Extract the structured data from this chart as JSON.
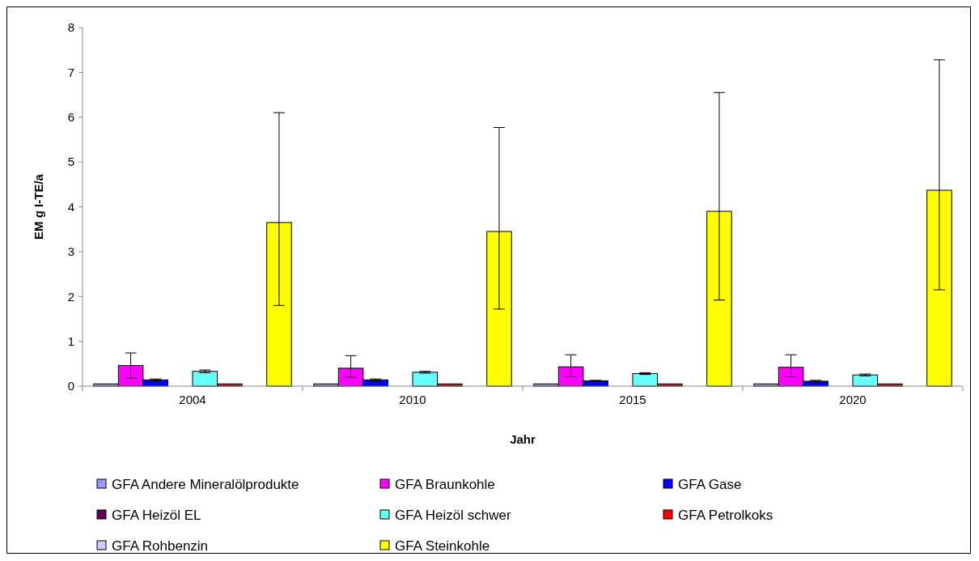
{
  "chart_data": {
    "type": "bar",
    "xlabel": "Jahr",
    "ylabel": "EM g I-TE/a",
    "categories": [
      "2004",
      "2010",
      "2015",
      "2020"
    ],
    "ylim": [
      0,
      8
    ],
    "yticks": [
      0,
      1,
      2,
      3,
      4,
      5,
      6,
      7,
      8
    ],
    "grid": false,
    "legend": "bottom",
    "series": [
      {
        "name": "GFA Andere Mineralölprodukte",
        "color": "#9999ff",
        "values": [
          0.05,
          0.05,
          0.05,
          0.05
        ]
      },
      {
        "name": "GFA Braunkohle",
        "color": "#ff00ff",
        "values": [
          0.46,
          0.4,
          0.43,
          0.42
        ],
        "errors": [
          [
            0.18,
            0.74
          ],
          [
            0.2,
            0.68
          ],
          [
            0.21,
            0.7
          ],
          [
            0.21,
            0.7
          ]
        ]
      },
      {
        "name": "GFA Gase",
        "color": "#0000ff",
        "values": [
          0.14,
          0.14,
          0.12,
          0.11
        ],
        "errors": [
          [
            0.12,
            0.16
          ],
          [
            0.12,
            0.16
          ],
          [
            0.1,
            0.13
          ],
          [
            0.09,
            0.13
          ]
        ]
      },
      {
        "name": "GFA Heizöl EL",
        "color": "#660066",
        "values": [
          0,
          0,
          0,
          0
        ]
      },
      {
        "name": "GFA Heizöl schwer",
        "color": "#66ffff",
        "values": [
          0.33,
          0.31,
          0.28,
          0.25
        ],
        "errors": [
          [
            0.3,
            0.36
          ],
          [
            0.29,
            0.33
          ],
          [
            0.26,
            0.3
          ],
          [
            0.23,
            0.27
          ]
        ]
      },
      {
        "name": "GFA Petrolkoks",
        "color": "#ff0000",
        "values": [
          0.05,
          0.05,
          0.05,
          0.05
        ]
      },
      {
        "name": "GFA Rohbenzin",
        "color": "#ccccff",
        "values": [
          0,
          0,
          0,
          0
        ]
      },
      {
        "name": "GFA Steinkohle",
        "color": "#ffff00",
        "values": [
          3.65,
          3.45,
          3.9,
          4.37
        ],
        "errors": [
          [
            1.8,
            6.1
          ],
          [
            1.72,
            5.77
          ],
          [
            1.92,
            6.55
          ],
          [
            2.15,
            7.28
          ]
        ]
      }
    ]
  }
}
